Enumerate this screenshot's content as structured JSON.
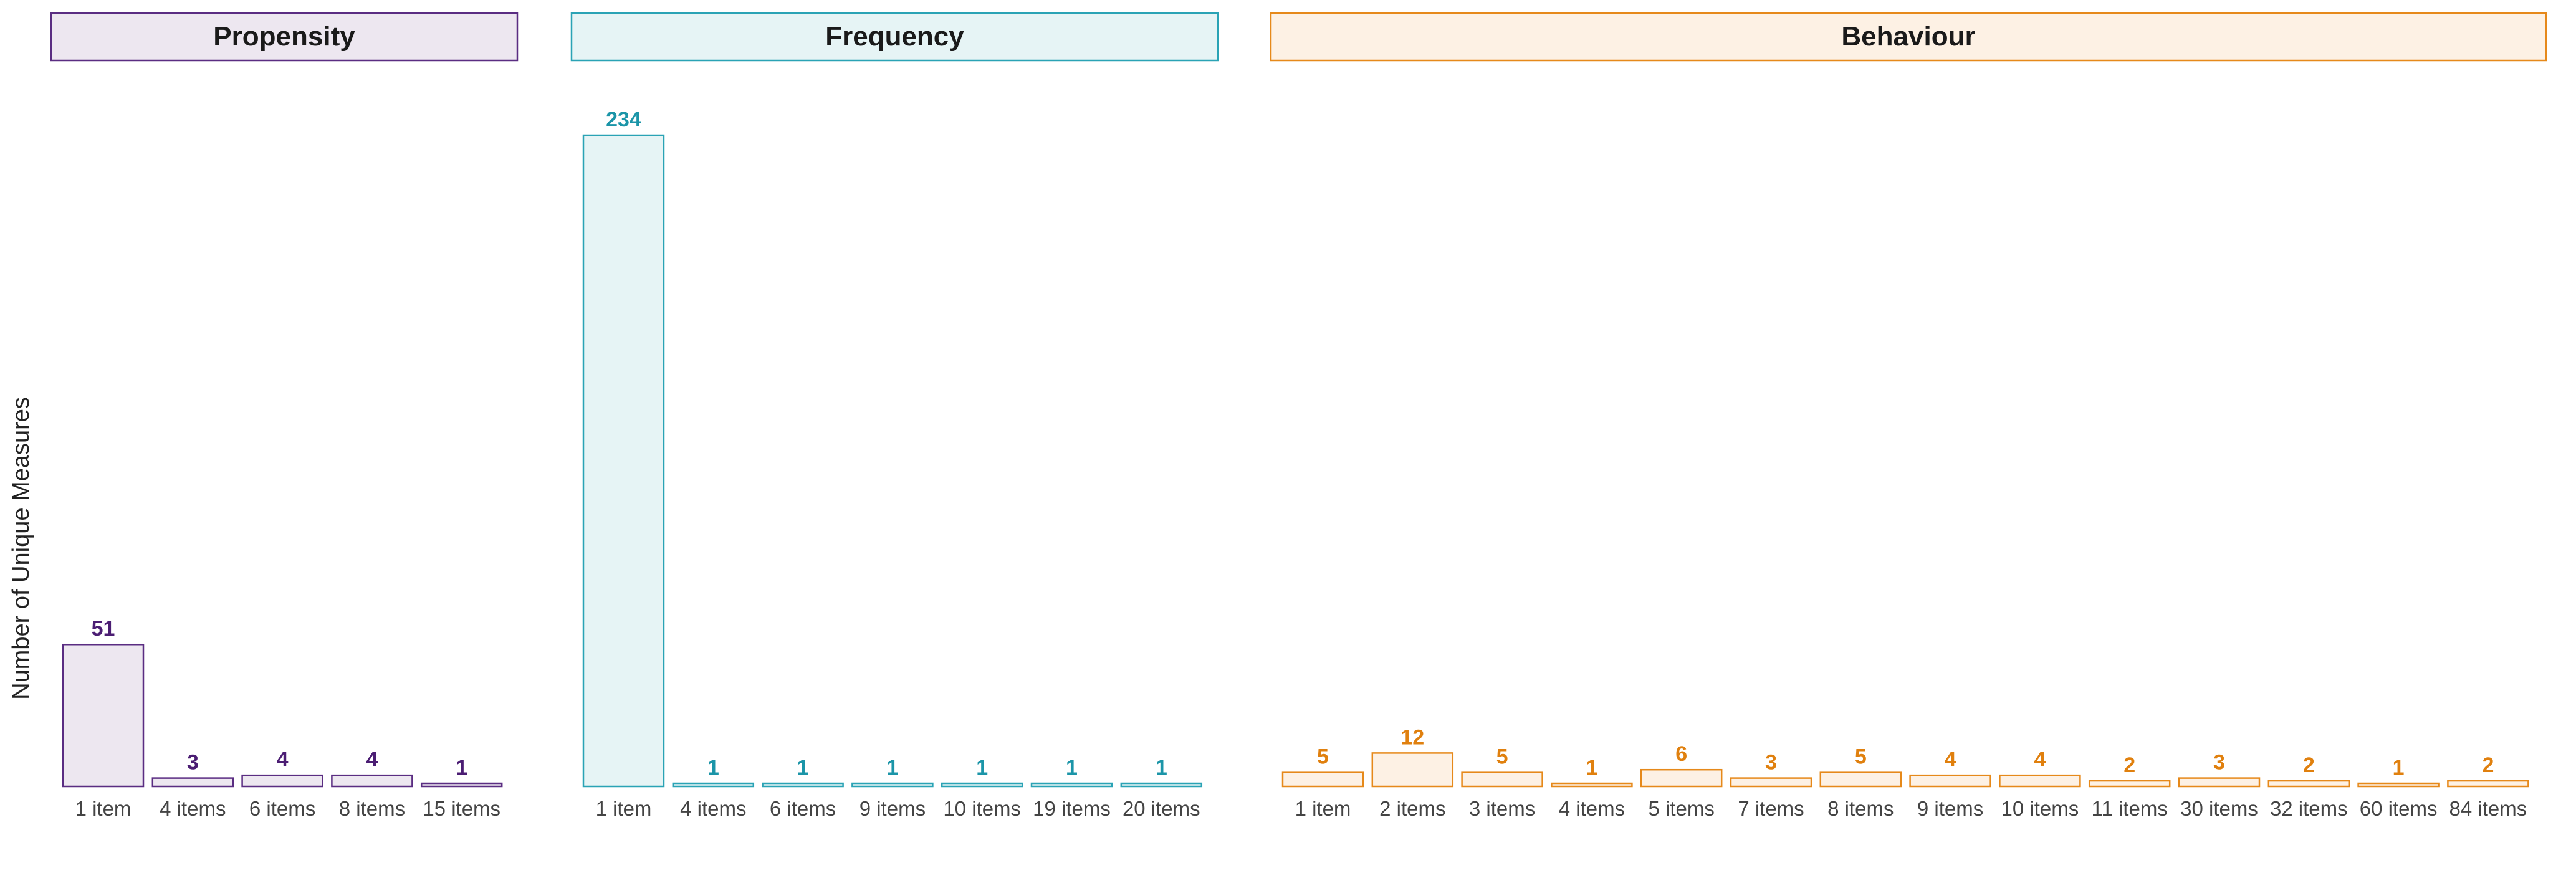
{
  "ylabel": "Number of Unique Measures",
  "colors": {
    "propensity": {
      "stroke": "#5a2d82",
      "fill": "#ede7f0",
      "label": "#4b1d73"
    },
    "frequency": {
      "stroke": "#2aa3b5",
      "fill": "#e6f4f5",
      "label": "#1b95a8"
    },
    "behaviour": {
      "stroke": "#e6891a",
      "fill": "#fdf1e4",
      "label": "#e0800e"
    }
  },
  "chart_data": [
    {
      "type": "bar",
      "title": "Propensity",
      "categories": [
        "1 item",
        "4 items",
        "6 items",
        "8 items",
        "15 items"
      ],
      "values": [
        51,
        3,
        4,
        4,
        1
      ],
      "ylim": [
        0,
        234
      ]
    },
    {
      "type": "bar",
      "title": "Frequency",
      "categories": [
        "1 item",
        "4 items",
        "6 items",
        "9 items",
        "10 items",
        "19 items",
        "20 items"
      ],
      "values": [
        234,
        1,
        1,
        1,
        1,
        1,
        1
      ],
      "ylim": [
        0,
        234
      ]
    },
    {
      "type": "bar",
      "title": "Behaviour",
      "categories": [
        "1 item",
        "2 items",
        "3 items",
        "4 items",
        "5 items",
        "7 items",
        "8 items",
        "9 items",
        "10 items",
        "11 items",
        "30 items",
        "32 items",
        "60 items",
        "84 items"
      ],
      "values": [
        5,
        12,
        5,
        1,
        6,
        3,
        5,
        4,
        4,
        2,
        3,
        2,
        1,
        2
      ],
      "ylim": [
        0,
        234
      ]
    }
  ]
}
